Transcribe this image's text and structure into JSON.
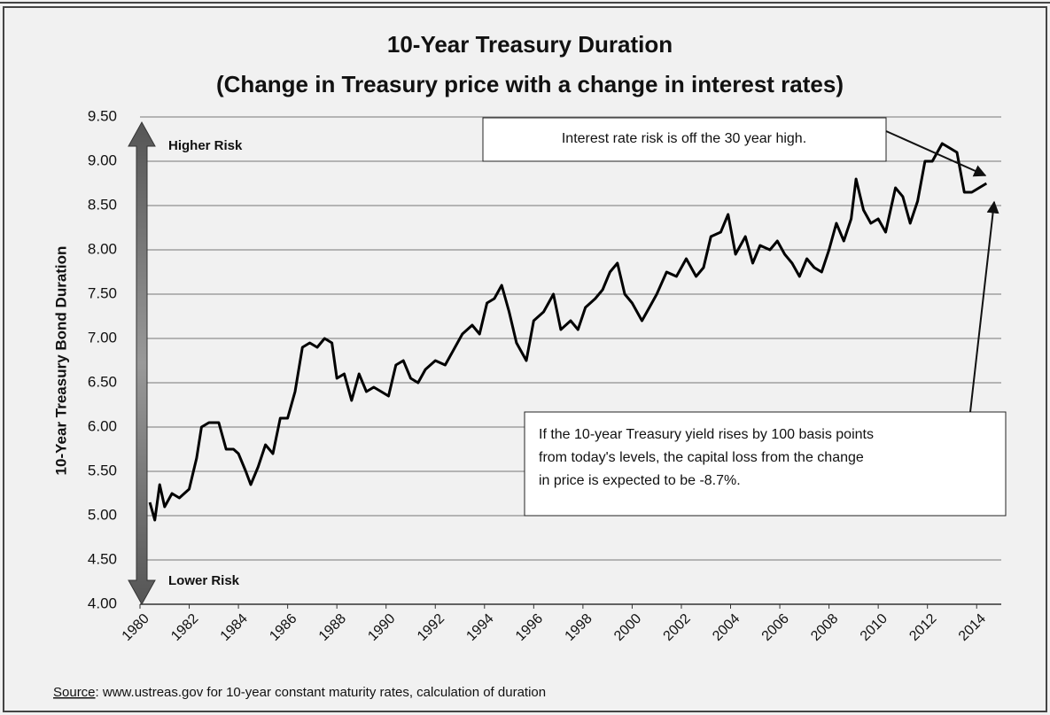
{
  "chart_data": {
    "type": "line",
    "title": "10-Year Treasury Duration",
    "subtitle": "(Change in Treasury price with a change in interest rates)",
    "y_label": "10-Year Treasury Bond Duration",
    "color": "#000000",
    "grid": true,
    "xlim": [
      1980,
      2015
    ],
    "xticks": [
      1980,
      1982,
      1984,
      1986,
      1988,
      1990,
      1992,
      1994,
      1996,
      1998,
      2000,
      2002,
      2004,
      2006,
      2008,
      2010,
      2012,
      2014
    ],
    "ylim": [
      4.0,
      9.5
    ],
    "yticks": [
      {
        "value": 4.0,
        "label": "4.00"
      },
      {
        "value": 4.5,
        "label": "4.50"
      },
      {
        "value": 5.0,
        "label": "5.00"
      },
      {
        "value": 5.5,
        "label": "5.50"
      },
      {
        "value": 6.0,
        "label": "6.00"
      },
      {
        "value": 6.5,
        "label": "6.50"
      },
      {
        "value": 7.0,
        "label": "7.00"
      },
      {
        "value": 7.5,
        "label": "7.50"
      },
      {
        "value": 8.0,
        "label": "8.00"
      },
      {
        "value": 8.5,
        "label": "8.50"
      },
      {
        "value": 9.0,
        "label": "9.00"
      },
      {
        "value": 9.5,
        "label": "9.50"
      }
    ],
    "x": [
      1980.4,
      1980.6,
      1980.8,
      1981.0,
      1981.3,
      1981.6,
      1982.0,
      1982.3,
      1982.5,
      1982.8,
      1983.2,
      1983.5,
      1983.8,
      1984.0,
      1984.3,
      1984.5,
      1984.8,
      1985.1,
      1985.4,
      1985.7,
      1986.0,
      1986.3,
      1986.6,
      1986.9,
      1987.2,
      1987.5,
      1987.8,
      1988.0,
      1988.3,
      1988.6,
      1988.9,
      1989.2,
      1989.5,
      1989.8,
      1990.1,
      1990.4,
      1990.7,
      1991.0,
      1991.3,
      1991.6,
      1992.0,
      1992.4,
      1992.8,
      1993.1,
      1993.5,
      1993.8,
      1994.1,
      1994.4,
      1994.7,
      1995.0,
      1995.3,
      1995.7,
      1996.0,
      1996.4,
      1996.8,
      1997.1,
      1997.5,
      1997.8,
      1998.1,
      1998.5,
      1998.8,
      1999.1,
      1999.4,
      1999.7,
      2000.0,
      2000.4,
      2000.7,
      2001.0,
      2001.4,
      2001.8,
      2002.2,
      2002.6,
      2002.9,
      2003.2,
      2003.6,
      2003.9,
      2004.2,
      2004.6,
      2004.9,
      2005.2,
      2005.6,
      2005.9,
      2006.2,
      2006.5,
      2006.8,
      2007.1,
      2007.4,
      2007.7,
      2008.0,
      2008.3,
      2008.6,
      2008.9,
      2009.1,
      2009.4,
      2009.7,
      2010.0,
      2010.3,
      2010.7,
      2011.0,
      2011.3,
      2011.6,
      2011.9,
      2012.2,
      2012.6,
      2012.9,
      2013.2,
      2013.5,
      2013.8,
      2014.1,
      2014.4
    ],
    "values": [
      5.15,
      4.95,
      5.35,
      5.1,
      5.25,
      5.2,
      5.3,
      5.65,
      6.0,
      6.05,
      6.05,
      5.75,
      5.75,
      5.7,
      5.5,
      5.35,
      5.55,
      5.8,
      5.7,
      6.1,
      6.1,
      6.4,
      6.9,
      6.95,
      6.9,
      7.0,
      6.95,
      6.55,
      6.6,
      6.3,
      6.6,
      6.4,
      6.45,
      6.4,
      6.35,
      6.7,
      6.75,
      6.55,
      6.5,
      6.65,
      6.75,
      6.7,
      6.9,
      7.05,
      7.15,
      7.05,
      7.4,
      7.45,
      7.6,
      7.3,
      6.95,
      6.75,
      7.2,
      7.3,
      7.5,
      7.1,
      7.2,
      7.1,
      7.35,
      7.45,
      7.55,
      7.75,
      7.85,
      7.5,
      7.4,
      7.2,
      7.35,
      7.5,
      7.75,
      7.7,
      7.9,
      7.7,
      7.8,
      8.15,
      8.2,
      8.4,
      7.95,
      8.15,
      7.85,
      8.05,
      8.0,
      8.1,
      7.95,
      7.85,
      7.7,
      7.9,
      7.8,
      7.75,
      8.0,
      8.3,
      8.1,
      8.35,
      8.8,
      8.45,
      8.3,
      8.35,
      8.2,
      8.7,
      8.6,
      8.3,
      8.55,
      9.0,
      9.0,
      9.2,
      9.15,
      9.1,
      8.65,
      8.65,
      8.7,
      8.75
    ],
    "risk_high": "Higher Risk",
    "risk_low": "Lower Risk",
    "note_top": "Interest rate risk is off the 30 year high.",
    "note_bottom": [
      "If the 10-year Treasury yield rises by 100 basis points",
      "from today's levels, the capital loss from the change",
      "in price is expected to be -8.7%."
    ],
    "source": {
      "label": "Source",
      "text": ": www.ustreas.gov for 10-year constant maturity rates, calculation of duration"
    }
  }
}
